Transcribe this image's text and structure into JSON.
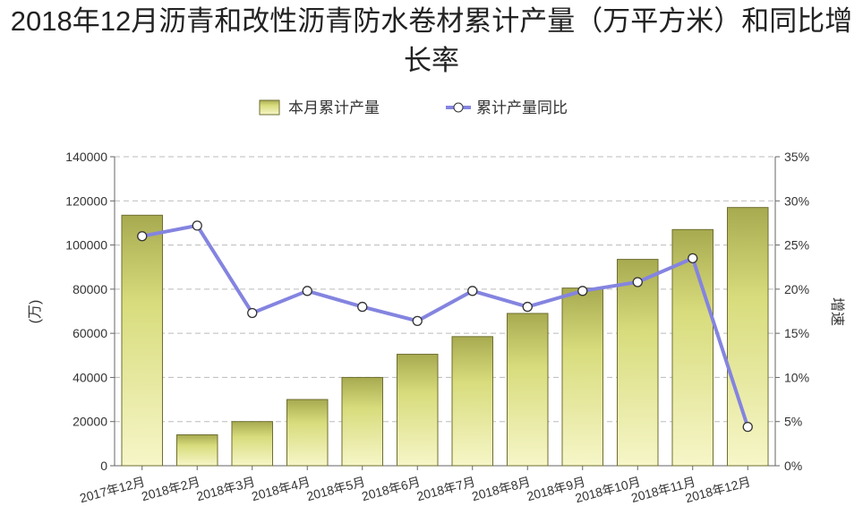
{
  "chart_data": {
    "type": "bar",
    "title": "2018年12月沥青和改性沥青防水卷材累计产量（万平方米）和同比增长率",
    "categories": [
      "2017年12月",
      "2018年2月",
      "2018年3月",
      "2018年4月",
      "2018年5月",
      "2018年6月",
      "2018年7月",
      "2018年8月",
      "2018年9月",
      "2018年10月",
      "2018年11月",
      "2018年12月"
    ],
    "series": [
      {
        "name": "本月累计产量",
        "type": "bar",
        "color": "#c8cc6c",
        "values": [
          113500,
          14000,
          20000,
          30000,
          40000,
          50500,
          58500,
          69000,
          80500,
          93500,
          107000,
          117000
        ]
      },
      {
        "name": "累计产量同比",
        "type": "line",
        "axis": "y2",
        "color": "#8484e0",
        "values": [
          26,
          27.2,
          17.3,
          19.8,
          18,
          16.4,
          19.8,
          18,
          19.8,
          20.8,
          23.5,
          4.4
        ]
      }
    ],
    "ylabel": "(万)",
    "y2label": "增速",
    "ylim": [
      0,
      140000
    ],
    "yticks": [
      0,
      20000,
      40000,
      60000,
      80000,
      100000,
      120000,
      140000
    ],
    "y2lim": [
      0,
      35
    ],
    "y2ticks": [
      {
        "value": 0,
        "label": "0%"
      },
      {
        "value": 5,
        "label": "5%"
      },
      {
        "value": 10,
        "label": "10%"
      },
      {
        "value": 15,
        "label": "15%"
      },
      {
        "value": 20,
        "label": "20%"
      },
      {
        "value": 25,
        "label": "25%"
      },
      {
        "value": 30,
        "label": "30%"
      },
      {
        "value": 35,
        "label": "35%"
      }
    ],
    "grid": true,
    "legend": "top"
  }
}
